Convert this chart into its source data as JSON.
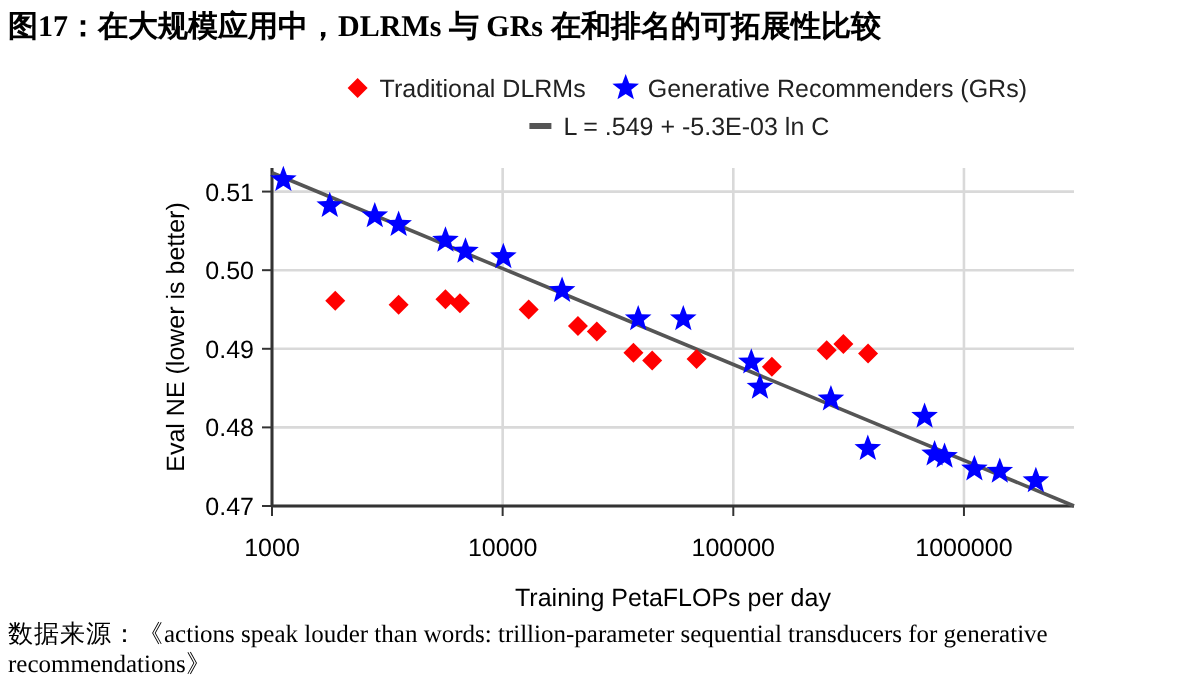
{
  "chart_data": {
    "type": "scatter",
    "title": "图17：在大规模应用中，DLRMs 与 GRs 在和排名的可拓展性比较",
    "xlabel": "Training PetaFLOPs per day",
    "ylabel": "Eval NE (lower is better)",
    "annotations": [
      "数据来源：《actions speak louder than words: trillion-parameter sequential transducers for generative recommendations》"
    ],
    "log": "x",
    "grid": true,
    "legend": "top",
    "xlim": [
      1000,
      3000000
    ],
    "xticks": [
      1000,
      10000,
      100000,
      1000000
    ],
    "ylim": [
      0.47,
      0.513
    ],
    "yticks": [
      0.47,
      0.48,
      0.49,
      {
        "value": 0.5,
        "label": "0.50"
      },
      0.51
    ],
    "series": [
      {
        "name": "Traditional DLRMs",
        "type": "scatter",
        "marker": "diamond",
        "color": "#ff0000",
        "x": [
          1880,
          3540,
          5650,
          6530,
          12970,
          21200,
          25600,
          36900,
          44500,
          69300,
          147000,
          254000,
          300000,
          384000
        ],
        "values": [
          0.4961,
          0.4956,
          0.4963,
          0.4958,
          0.495,
          0.4929,
          0.4922,
          0.4895,
          0.4885,
          0.4887,
          0.4877,
          0.4898,
          0.4906,
          0.4894
        ]
      },
      {
        "name": "Generative Recommenders (GRs)",
        "type": "scatter",
        "marker": "star",
        "color": "#0000ff",
        "x": [
          1120,
          1780,
          2790,
          3540,
          5650,
          6900,
          10070,
          18100,
          38700,
          60700,
          119700,
          130500,
          265000,
          383000,
          675000,
          746000,
          824000,
          1110000,
          1430000,
          2050000
        ],
        "values": [
          0.5115,
          0.5082,
          0.5069,
          0.5058,
          0.5038,
          0.5024,
          0.5017,
          0.4974,
          0.4938,
          0.4938,
          0.4883,
          0.4851,
          0.4836,
          0.4773,
          0.4814,
          0.4766,
          0.4763,
          0.4747,
          0.4744,
          0.4732
        ]
      },
      {
        "name": "L = .549 + -5.3E-03 ln C",
        "type": "line",
        "marker": "none",
        "color": "#555555",
        "x": [
          1000,
          3000000
        ],
        "values": [
          0.5124,
          0.47
        ]
      }
    ]
  }
}
